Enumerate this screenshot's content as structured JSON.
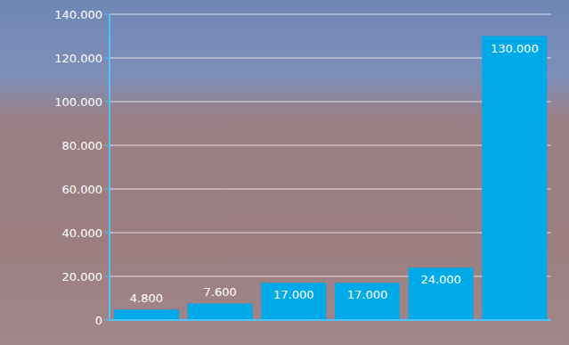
{
  "chart_data": {
    "type": "bar",
    "categories": [
      null,
      null,
      null,
      null,
      null,
      null
    ],
    "values": [
      4800,
      7600,
      17000,
      17000,
      24000,
      130000
    ],
    "value_labels": [
      "4.800",
      "7.600",
      "17.000",
      "17.000",
      "24.000",
      "130.000"
    ],
    "color": "#00a9e8",
    "ylim": [
      0,
      140000
    ],
    "yticks": [
      0,
      {
        "value": 20000,
        "label": "20.000"
      },
      {
        "value": 40000,
        "label": "40.000"
      },
      {
        "value": 60000,
        "label": "60.000"
      },
      {
        "value": 80000,
        "label": "80.000"
      },
      {
        "value": 100000,
        "label": "100.000"
      },
      {
        "value": 120000,
        "label": "120.000"
      },
      {
        "value": 140000,
        "label": "140.000"
      }
    ],
    "grid": true,
    "data_labels": true
  }
}
